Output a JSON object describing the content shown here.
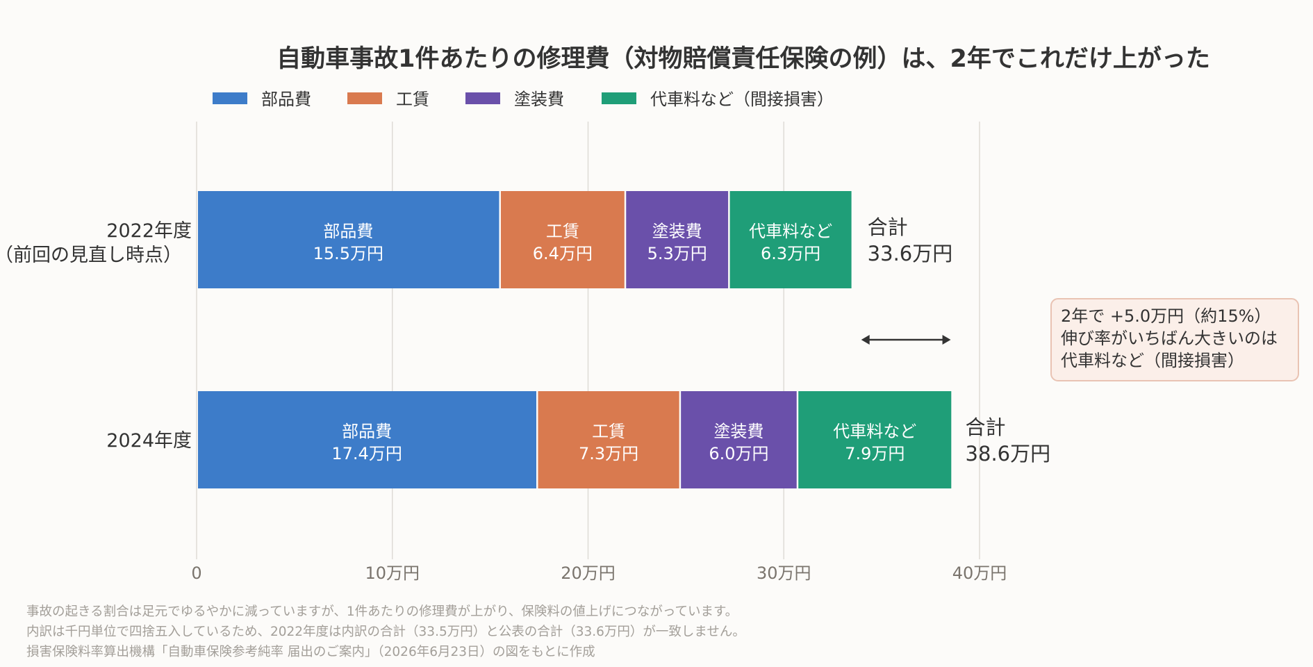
{
  "chart_data": {
    "type": "bar",
    "orientation": "horizontal",
    "stacked": true,
    "title": "自動車事故1件あたりの修理費（対物賠償責任保険の例）は、2年でこれだけ上がった",
    "categories": [
      {
        "line1": "2022年度",
        "line2": "（前回の見直し時点）"
      },
      {
        "line1": "2024年度",
        "line2": ""
      }
    ],
    "series": [
      {
        "name": "部品費",
        "color": "#3d7cc9",
        "values": [
          15.5,
          17.4
        ],
        "labels": [
          "15.5万円",
          "17.4万円"
        ]
      },
      {
        "name": "工賃",
        "color": "#d97a4f",
        "values": [
          6.4,
          7.3
        ],
        "labels": [
          "6.4万円",
          "7.3万円"
        ]
      },
      {
        "name": "塗装費",
        "color": "#6a50aa",
        "values": [
          5.3,
          6.0
        ],
        "labels": [
          "5.3万円",
          "6.0万円"
        ]
      },
      {
        "name": "代車料など（間接損害）",
        "short_name": "代車料など",
        "color": "#1f9e78",
        "values": [
          6.3,
          7.9
        ],
        "labels": [
          "6.3万円",
          "7.9万円"
        ]
      }
    ],
    "totals": [
      {
        "prefix": "合計",
        "value": 33.6,
        "label": "33.6万円"
      },
      {
        "prefix": "合計",
        "value": 38.6,
        "label": "38.6万円"
      }
    ],
    "xlim": [
      0,
      40
    ],
    "xticks": [
      0,
      10,
      20,
      30,
      40
    ],
    "xtick_labels": [
      "0",
      "10万円",
      "20万円",
      "30万円",
      "40万円"
    ],
    "grid": "vertical",
    "legend_position": "top-left",
    "annotation": {
      "lines": [
        "2年で +5.0万円（約15%）",
        "伸び率がいちばん大きいのは",
        "代車料など（間接損害）"
      ],
      "arrow_from": 33.6,
      "arrow_to": 38.6
    }
  },
  "footnotes": [
    "事故の起きる割合は足元でゆるやかに減っていますが、1件あたりの修理費が上がり、保険料の値上げにつながっています。",
    "内訳は千円単位で四捨五入しているため、2022年度は内訳の合計（33.5万円）と公表の合計（33.6万円）が一致しません。",
    "損害保険料率算出機構「自動車保険参考純率 届出のご案内」（2026年6月23日）の図をもとに作成"
  ],
  "colors": {
    "background": "#fcfbf9",
    "annotation_fill": "#fbefe9",
    "annotation_border": "#e9c3b3"
  }
}
